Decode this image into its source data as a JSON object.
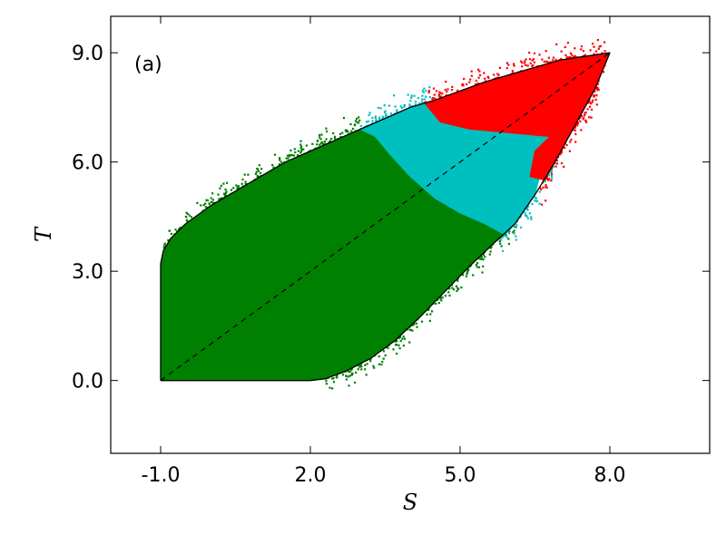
{
  "chart_data": {
    "type": "scatter",
    "panel_label": "(a)",
    "xlabel": "S",
    "ylabel": "T",
    "xlim": [
      -2.0,
      10.0
    ],
    "ylim": [
      -2.0,
      10.0
    ],
    "x_ticks": [
      -1.0,
      2.0,
      5.0,
      8.0
    ],
    "x_tick_labels": [
      "-1.0",
      "2.0",
      "5.0",
      "8.0"
    ],
    "y_ticks": [
      0.0,
      3.0,
      6.0,
      9.0
    ],
    "y_tick_labels": [
      "0.0",
      "3.0",
      "6.0",
      "9.0"
    ],
    "grid": false,
    "colors": {
      "green": "#008000",
      "cyan": "#00bfbf",
      "red": "#ff0000"
    },
    "diagonal": {
      "from": [
        -1.0,
        0.0
      ],
      "to": [
        8.0,
        9.0
      ],
      "style": "dashed"
    },
    "boundary": {
      "upper": [
        [
          -1.0,
          3.2
        ],
        [
          -0.95,
          3.55
        ],
        [
          -0.8,
          3.9
        ],
        [
          -0.5,
          4.3
        ],
        [
          0.0,
          4.8
        ],
        [
          0.5,
          5.2
        ],
        [
          1.0,
          5.6
        ],
        [
          1.5,
          6.0
        ],
        [
          2.0,
          6.3
        ],
        [
          2.5,
          6.6
        ],
        [
          3.0,
          6.9
        ],
        [
          3.5,
          7.2
        ],
        [
          4.0,
          7.5
        ],
        [
          4.5,
          7.7
        ],
        [
          5.0,
          7.95
        ],
        [
          5.5,
          8.2
        ],
        [
          6.0,
          8.4
        ],
        [
          6.5,
          8.6
        ],
        [
          7.0,
          8.8
        ],
        [
          8.0,
          9.0
        ]
      ],
      "lower": [
        [
          -1.0,
          0.0
        ],
        [
          2.0,
          0.0
        ],
        [
          2.3,
          0.05
        ],
        [
          2.7,
          0.25
        ],
        [
          3.2,
          0.6
        ],
        [
          3.7,
          1.1
        ],
        [
          4.2,
          1.75
        ],
        [
          4.7,
          2.45
        ],
        [
          5.2,
          3.15
        ],
        [
          5.7,
          3.8
        ],
        [
          6.1,
          4.3
        ],
        [
          6.5,
          5.1
        ],
        [
          6.9,
          6.0
        ],
        [
          7.3,
          7.0
        ],
        [
          7.7,
          8.0
        ],
        [
          8.0,
          9.0
        ]
      ],
      "left": [
        [
          -1.0,
          0.0
        ],
        [
          -1.0,
          3.2
        ]
      ]
    },
    "series": [
      {
        "color": "green",
        "region": [
          [
            -1.0,
            0.0
          ],
          [
            -1.0,
            3.2
          ],
          [
            -0.95,
            3.55
          ],
          [
            -0.8,
            3.9
          ],
          [
            -0.5,
            4.3
          ],
          [
            0.0,
            4.8
          ],
          [
            0.5,
            5.2
          ],
          [
            1.0,
            5.6
          ],
          [
            1.5,
            6.0
          ],
          [
            2.0,
            6.3
          ],
          [
            2.5,
            6.6
          ],
          [
            3.0,
            6.9
          ],
          [
            3.3,
            6.7
          ],
          [
            3.6,
            6.2
          ],
          [
            4.0,
            5.6
          ],
          [
            4.5,
            5.0
          ],
          [
            5.0,
            4.6
          ],
          [
            5.5,
            4.3
          ],
          [
            5.9,
            4.0
          ],
          [
            5.7,
            3.8
          ],
          [
            5.2,
            3.15
          ],
          [
            4.7,
            2.45
          ],
          [
            4.2,
            1.75
          ],
          [
            3.7,
            1.1
          ],
          [
            3.2,
            0.6
          ],
          [
            2.7,
            0.25
          ],
          [
            2.3,
            0.05
          ],
          [
            2.0,
            0.0
          ]
        ]
      },
      {
        "color": "cyan",
        "region": [
          [
            3.0,
            6.9
          ],
          [
            3.5,
            7.2
          ],
          [
            4.0,
            7.5
          ],
          [
            4.3,
            7.6
          ],
          [
            4.6,
            7.1
          ],
          [
            5.2,
            6.9
          ],
          [
            6.0,
            6.8
          ],
          [
            6.8,
            6.7
          ],
          [
            6.5,
            5.1
          ],
          [
            6.1,
            4.3
          ],
          [
            5.9,
            4.0
          ],
          [
            5.5,
            4.3
          ],
          [
            5.0,
            4.6
          ],
          [
            4.5,
            5.0
          ],
          [
            4.0,
            5.6
          ],
          [
            3.6,
            6.2
          ],
          [
            3.3,
            6.7
          ]
        ]
      },
      {
        "color": "red",
        "region": [
          [
            4.3,
            7.6
          ],
          [
            4.5,
            7.7
          ],
          [
            5.0,
            7.95
          ],
          [
            5.5,
            8.2
          ],
          [
            6.0,
            8.4
          ],
          [
            6.5,
            8.6
          ],
          [
            7.0,
            8.8
          ],
          [
            8.0,
            9.0
          ],
          [
            7.7,
            8.0
          ],
          [
            7.3,
            7.0
          ],
          [
            7.0,
            6.3
          ],
          [
            6.9,
            6.0
          ],
          [
            6.7,
            5.5
          ],
          [
            6.4,
            5.6
          ],
          [
            6.5,
            6.3
          ],
          [
            6.8,
            6.7
          ],
          [
            6.0,
            6.8
          ],
          [
            5.2,
            6.9
          ],
          [
            4.6,
            7.1
          ]
        ]
      }
    ]
  }
}
